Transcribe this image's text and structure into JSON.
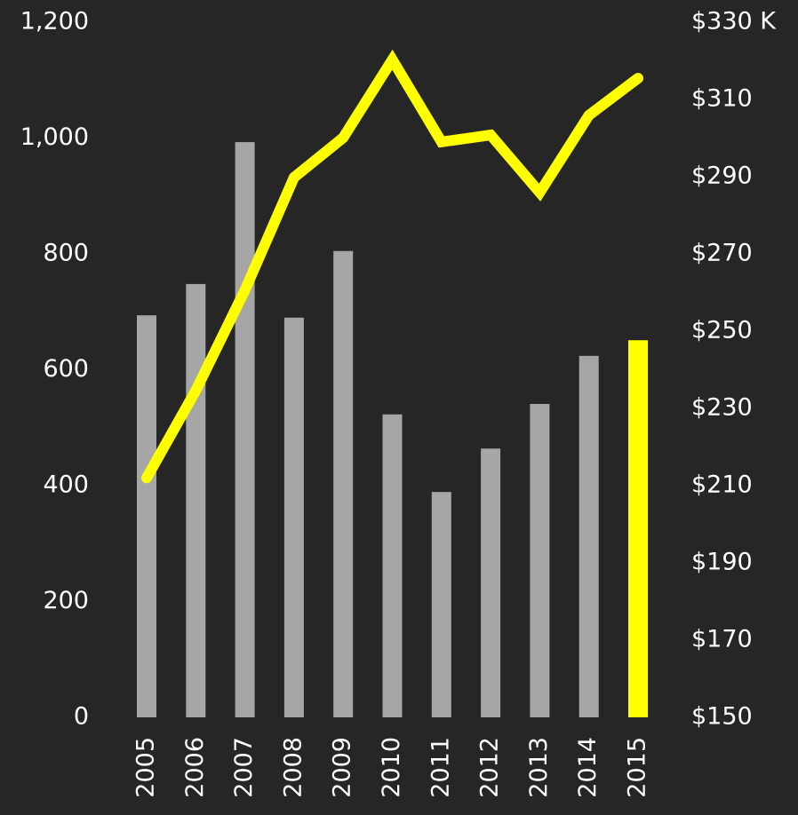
{
  "chart_data": {
    "type": "bar",
    "categories": [
      "2005",
      "2006",
      "2007",
      "2008",
      "2009",
      "2010",
      "2011",
      "2012",
      "2013",
      "2014",
      "2015"
    ],
    "series": [
      {
        "type": "bar",
        "colors": [
          "#a6a6a6",
          "#a6a6a6",
          "#a6a6a6",
          "#a6a6a6",
          "#a6a6a6",
          "#a6a6a6",
          "#a6a6a6",
          "#a6a6a6",
          "#a6a6a6",
          "#a6a6a6",
          "#ffff00"
        ],
        "values": [
          694,
          748,
          993,
          690,
          805,
          523,
          389,
          464,
          541,
          624,
          651
        ]
      },
      {
        "type": "line",
        "axis": "y2",
        "color": "#ffff00",
        "values": [
          212,
          234.6,
          260.6,
          289.8,
          300.1,
          320.3,
          299,
          300.8,
          285.9,
          305.9,
          315.5
        ]
      }
    ],
    "ylim": [
      0,
      1200
    ],
    "yticks": [
      0,
      200,
      400,
      600,
      800,
      {
        "value": 1000,
        "label": "1,000"
      },
      {
        "value": 1200,
        "label": "1,200"
      }
    ],
    "y2lim": [
      150,
      330
    ],
    "y2ticks": [
      {
        "value": 150,
        "label": "$150"
      },
      {
        "value": 170,
        "label": "$170"
      },
      {
        "value": 190,
        "label": "$190"
      },
      {
        "value": 210,
        "label": "$210"
      },
      {
        "value": 230,
        "label": "$230"
      },
      {
        "value": 250,
        "label": "$250"
      },
      {
        "value": 270,
        "label": "$270"
      },
      {
        "value": 290,
        "label": "$290"
      },
      {
        "value": 310,
        "label": "$310"
      },
      {
        "value": 330,
        "label": "$330 K"
      }
    ]
  }
}
